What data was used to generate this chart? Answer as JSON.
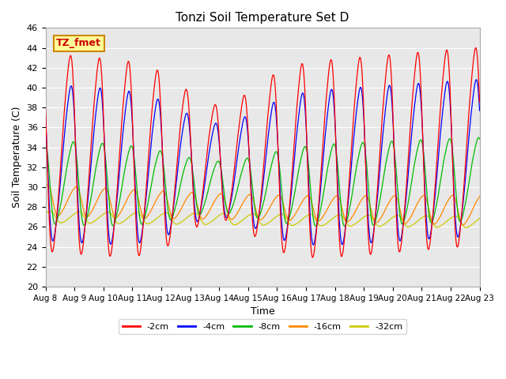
{
  "title": "Tonzi Soil Temperature Set D",
  "xlabel": "Time",
  "ylabel": "Soil Temperature (C)",
  "ylim": [
    20,
    46
  ],
  "xlim": [
    0,
    15
  ],
  "yticks": [
    20,
    22,
    24,
    26,
    28,
    30,
    32,
    34,
    36,
    38,
    40,
    42,
    44,
    46
  ],
  "xtick_labels": [
    "Aug 8",
    "Aug 9",
    "Aug 10",
    "Aug 11",
    "Aug 12",
    "Aug 13",
    "Aug 14",
    "Aug 15",
    "Aug 16",
    "Aug 17",
    "Aug 18",
    "Aug 19",
    "Aug 20",
    "Aug 21",
    "Aug 22",
    "Aug 23"
  ],
  "legend_labels": [
    "-2cm",
    "-4cm",
    "-8cm",
    "-16cm",
    "-32cm"
  ],
  "legend_colors": [
    "#ff0000",
    "#0000ff",
    "#00bb00",
    "#ff8800",
    "#cccc00"
  ],
  "annotation_text": "TZ_fmet",
  "annotation_bg": "#ffff99",
  "annotation_border": "#cc8800",
  "background_color": "#e8e8e8",
  "series_colors": [
    "#ff0000",
    "#0000ff",
    "#00bb00",
    "#ff8800",
    "#cccc00"
  ],
  "n_points": 7200
}
